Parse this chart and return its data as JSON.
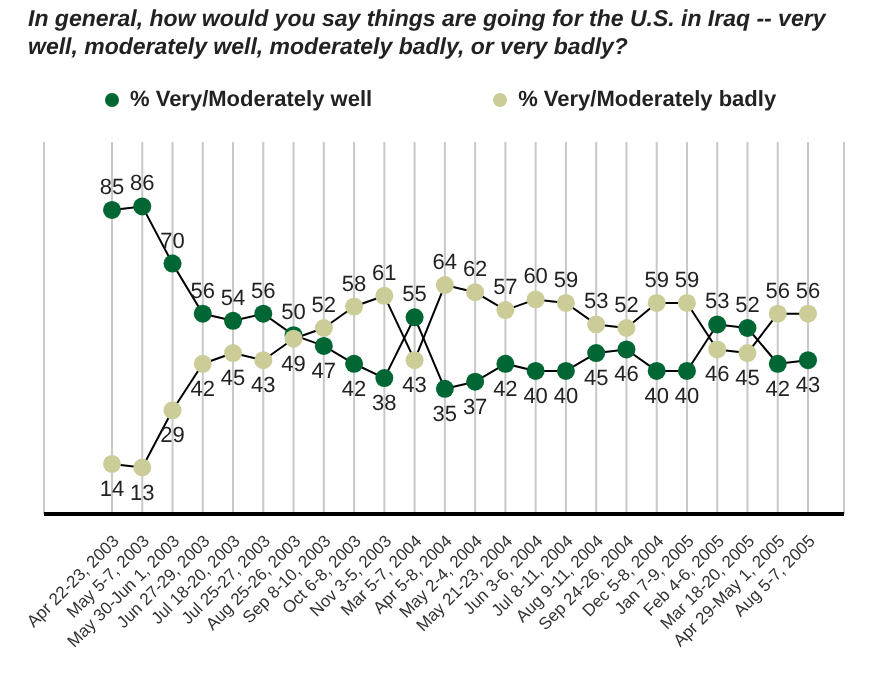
{
  "chart_data": {
    "type": "line",
    "title": "In general, how would you say things are going for the U.S. in Iraq -- very well, moderately well, moderately badly, or very badly?",
    "categories": [
      "Apr 22-23, 2003",
      "May 5-7, 2003",
      "May 30-Jun 1, 2003",
      "Jun 27-29, 2003",
      "Jul 18-20, 2003",
      "Jul 25-27, 2003",
      "Aug 25-26, 2003",
      "Sep 8-10, 2003",
      "Oct 6-8, 2003",
      "Nov 3-5, 2003",
      "Mar 5-7, 2004",
      "Apr 5-8, 2004",
      "May 2-4, 2004",
      "May 21-23, 2004",
      "Jun 3-6, 2004",
      "Jul 8-11, 2004",
      "Aug 9-11, 2004",
      "Sep 24-26, 2004",
      "Dec 5-8, 2004",
      "Jan 7-9, 2005",
      "Feb 4-6, 2005",
      "Mar 18-20, 2005",
      "Apr 29-May 1, 2005",
      "Aug 5-7, 2005"
    ],
    "series": [
      {
        "name": "% Very/Moderately well",
        "color": "#006633",
        "values": [
          85,
          86,
          70,
          56,
          54,
          56,
          50,
          47,
          42,
          38,
          55,
          35,
          37,
          42,
          40,
          40,
          45,
          46,
          40,
          40,
          53,
          52,
          42,
          43
        ]
      },
      {
        "name": "% Very/Moderately badly",
        "color": "#cccc99",
        "values": [
          14,
          13,
          29,
          42,
          45,
          43,
          49,
          52,
          58,
          61,
          43,
          64,
          62,
          57,
          60,
          59,
          53,
          52,
          59,
          59,
          46,
          45,
          56,
          56
        ]
      }
    ],
    "ylim": [
      0,
      104
    ],
    "tick_labels": "x",
    "data_labels": true,
    "legend": "top",
    "marker": "circle",
    "line_style": "solid",
    "grid": "x"
  }
}
